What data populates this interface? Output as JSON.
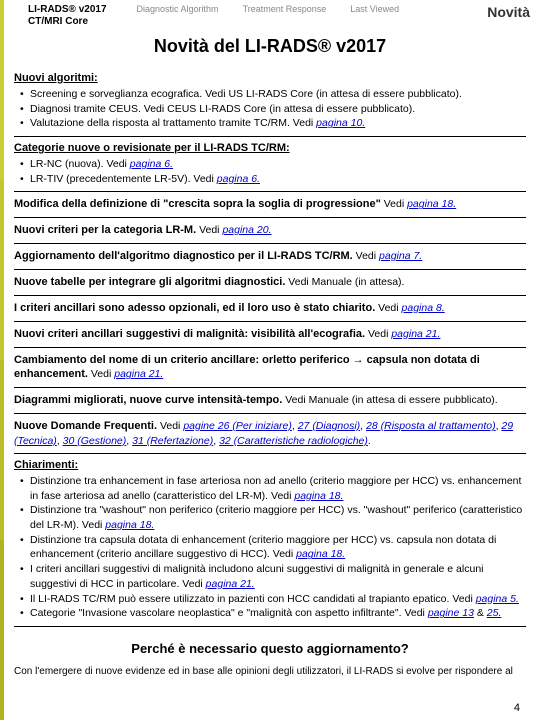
{
  "sidebar_colors": [
    "#cccc33",
    "#c5c52e",
    "#bcbc28",
    "#b3b322"
  ],
  "header": {
    "brand_line1": "LI-RADS® v2017",
    "brand_line2": "CT/MRI Core",
    "nav": [
      "Diagnostic Algorithm",
      "Treatment Response",
      "Last Viewed"
    ],
    "right": "Novità"
  },
  "title": "Novità del LI-RADS® v2017",
  "sections": [
    {
      "title": "Nuovi algoritmi:",
      "items": [
        {
          "text": "Screening e sorveglianza ecografica. Vedi US LI-RADS Core (in attesa di essere pubblicato)."
        },
        {
          "text": "Diagnosi tramite CEUS. Vedi CEUS LI-RADS Core (in attesa di essere pubblicato)."
        },
        {
          "text": "Valutazione della risposta al trattamento tramite TC/RM. Vedi ",
          "link": "pagina 10."
        }
      ]
    },
    {
      "title": "Categorie nuove o revisionate per il LI-RADS TC/RM:",
      "items": [
        {
          "text": "LR-NC (nuova). Vedi ",
          "link": "pagina 6."
        },
        {
          "text": "LR-TIV (precedentemente LR-5V). Vedi ",
          "link": "pagina 6."
        }
      ]
    },
    {
      "inline": true,
      "title": "Modifica della definizione di \"crescita sopra la soglia di progressione\"",
      "after": " Vedi ",
      "link": "pagina 18."
    },
    {
      "inline": true,
      "title": "Nuovi criteri per la categoria LR-M.",
      "after": " Vedi ",
      "link": "pagina 20."
    },
    {
      "inline": true,
      "title": "Aggiornamento dell'algoritmo diagnostico per il LI-RADS TC/RM.",
      "after": " Vedi ",
      "link": "pagina 7."
    },
    {
      "inline": true,
      "title": "Nuove tabelle per integrare gli algoritmi diagnostici.",
      "after": " Vedi Manuale (in attesa)."
    },
    {
      "inline": true,
      "title": "I criteri ancillari sono adesso opzionali, ed il loro uso è stato chiarito.",
      "after": " Vedi ",
      "link": "pagina 8."
    },
    {
      "inline": true,
      "title": "Nuovi criteri ancillari suggestivi di malignità: visibilità all'ecografia.",
      "after": " Vedi ",
      "link": "pagina 21."
    },
    {
      "inline": true,
      "title": "Cambiamento del nome di un criterio ancillare: orletto periferico → capsula non dotata di enhancement.",
      "after": " Vedi ",
      "link": "pagina 21."
    },
    {
      "inline": true,
      "title": "Diagrammi migliorati, nuove curve intensità-tempo.",
      "after": " Vedi Manuale (in attesa di essere pubblicato)."
    },
    {
      "inline": true,
      "title": "Nuove Domande Frequenti.",
      "after": " Vedi ",
      "multi_links": [
        "pagine 26 (Per iniziare)",
        "27 (Diagnosi)",
        "28 (Risposta al trattamento)",
        "29 (Tecnica)",
        "30 (Gestione)",
        "31 (Refertazione)",
        "32 (Caratteristiche radiologiche)"
      ],
      "end": "."
    },
    {
      "title": "Chiarimenti:",
      "items": [
        {
          "text": "Distinzione tra enhancement in fase arteriosa non ad anello (criterio maggiore per HCC) vs. enhancement in fase arteriosa ad anello (caratteristico del LR-M). Vedi ",
          "link": "pagina 18."
        },
        {
          "text": "Distinzione tra \"washout\" non periferico (criterio maggiore per HCC) vs. \"washout\" periferico (caratteristico del LR-M). Vedi ",
          "link": "pagina 18."
        },
        {
          "text": "Distinzione tra capsula dotata di enhancement (criterio maggiore per HCC) vs. capsula non dotata di enhancement (criterio ancillare suggestivo di HCC). Vedi ",
          "link": "pagina 18."
        },
        {
          "text": "I criteri ancillari suggestivi di malignità includono alcuni suggestivi di malignità in generale e alcuni suggestivi di HCC in particolare. Vedi ",
          "link": "pagina 21."
        },
        {
          "text": "Il LI-RADS TC/RM può essere utilizzato in pazienti con HCC candidati al trapianto epatico. Vedi ",
          "link": "pagina 5."
        },
        {
          "text": "Categorie \"Invasione vascolare neoplastica\" e \"malignità con aspetto infiltrante\". Vedi ",
          "links2": [
            "pagine 13",
            " & ",
            "25."
          ]
        }
      ]
    }
  ],
  "footer_title": "Perché è necessario questo aggiornamento?",
  "footer_text": "Con l'emergere di nuove evidenze ed in base alle opinioni degli utilizzatori, il LI-RADS si evolve per rispondere al",
  "page_num": "4"
}
